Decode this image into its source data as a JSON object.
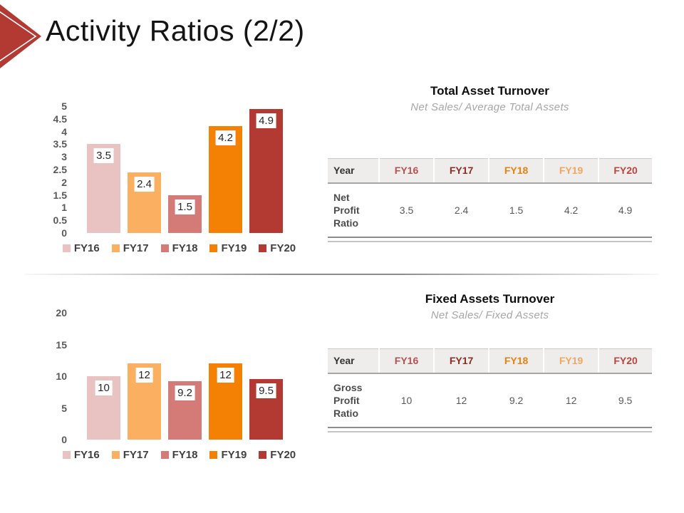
{
  "page_title": "Activity Ratios (2/2)",
  "icons": {
    "logo": "arrow-right-icon"
  },
  "colors": {
    "accent_red": "#b23a33",
    "series": [
      "#e9c2c2",
      "#fbaf61",
      "#d47a77",
      "#f58104",
      "#b23a33"
    ],
    "table_header_text": [
      "#b5524e",
      "#8c2d22",
      "#e8830e",
      "#f3a65c",
      "#b8463f"
    ],
    "table_header_bg": "#efedec",
    "axis_text": "#595959",
    "legend_text": "#404040"
  },
  "chart_data": [
    {
      "type": "bar",
      "title": "Total Asset Turnover",
      "subtitle": "Net Sales/ Average Total Assets",
      "categories": [
        "FY16",
        "FY17",
        "FY18",
        "FY19",
        "FY20"
      ],
      "values": [
        3.5,
        2.4,
        1.5,
        4.2,
        4.9
      ],
      "value_labels": [
        "3.5",
        "2.4",
        "1.5",
        "4.2",
        "4.9"
      ],
      "xlabel": "",
      "ylabel": "",
      "ylim": [
        0,
        5
      ],
      "yticks": [
        5,
        4.5,
        4,
        3.5,
        3,
        2.5,
        2,
        1.5,
        1,
        0.5,
        0
      ],
      "grid": false,
      "legend_position": "bottom"
    },
    {
      "type": "bar",
      "title": "Fixed Assets Turnover",
      "subtitle": "Net Sales/ Fixed Assets",
      "categories": [
        "FY16",
        "FY17",
        "FY18",
        "FY19",
        "FY20"
      ],
      "values": [
        10,
        12,
        9.2,
        12,
        9.5
      ],
      "value_labels": [
        "10",
        "12",
        "9.2",
        "12",
        "9.5"
      ],
      "xlabel": "",
      "ylabel": "",
      "ylim": [
        0,
        20
      ],
      "yticks": [
        20,
        15,
        10,
        5,
        0
      ],
      "grid": false,
      "legend_position": "bottom"
    }
  ],
  "tables": [
    {
      "header": [
        "Year",
        "FY16",
        "FY17",
        "FY18",
        "FY19",
        "FY20"
      ],
      "rows": [
        {
          "label": "Net Profit Ratio",
          "values": [
            "3.5",
            "2.4",
            "1.5",
            "4.2",
            "4.9"
          ]
        }
      ]
    },
    {
      "header": [
        "Year",
        "FY16",
        "FY17",
        "FY18",
        "FY19",
        "FY20"
      ],
      "rows": [
        {
          "label": "Gross Profit Ratio",
          "values": [
            "10",
            "12",
            "9.2",
            "12",
            "9.5"
          ]
        }
      ]
    }
  ]
}
